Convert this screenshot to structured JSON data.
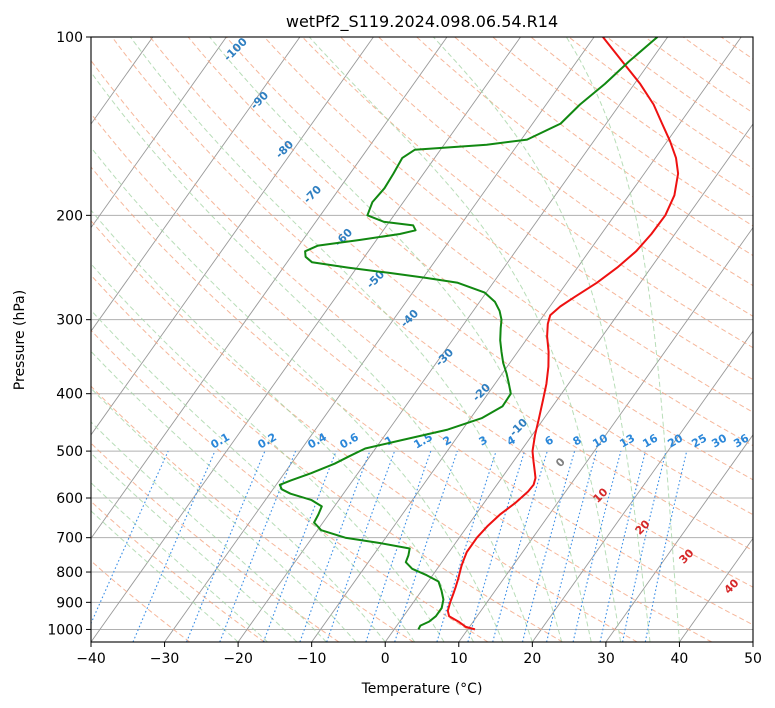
{
  "chart_data": {
    "type": "line",
    "subtype": "skew-T log-P diagram",
    "title": "wetPf2_S119.2024.098.06.54.R14",
    "xlabel": "Temperature (°C)",
    "ylabel": "Pressure (hPa)",
    "xlim": [
      -40,
      50
    ],
    "ylim": [
      1050,
      100
    ],
    "y_scale": "log",
    "x_ticks": [
      -40,
      -30,
      -20,
      -10,
      0,
      10,
      20,
      30,
      40,
      50
    ],
    "x_tick_labels": [
      "−40",
      "−30",
      "−20",
      "−10",
      "0",
      "10",
      "20",
      "30",
      "40",
      "50"
    ],
    "y_ticks": [
      1000,
      900,
      800,
      700,
      600,
      500,
      400,
      300,
      200,
      100
    ],
    "y_tick_labels": [
      "1000",
      "900",
      "800",
      "700",
      "600",
      "500",
      "400",
      "300",
      "200",
      "100"
    ],
    "grid": true,
    "colors": {
      "temperature": "#ee1111",
      "dewpoint": "#118811",
      "isotherm": "#999999",
      "dry_adiabat": "#f4a582",
      "moist_adiabat": "#a6d4a6",
      "mixing_ratio": "#3a8ee6",
      "label_blue": "#2f7fc1",
      "label_red": "#d62728",
      "label_gray": "#808080"
    },
    "series": [
      {
        "name": "Temperature",
        "points": [
          [
            1000,
            11.0
          ],
          [
            990,
            9.5
          ],
          [
            970,
            8.0
          ],
          [
            950,
            6.2
          ],
          [
            930,
            5.5
          ],
          [
            900,
            5.0
          ],
          [
            870,
            4.6
          ],
          [
            850,
            4.3
          ],
          [
            820,
            3.8
          ],
          [
            800,
            3.4
          ],
          [
            780,
            3.0
          ],
          [
            760,
            2.7
          ],
          [
            740,
            2.4
          ],
          [
            720,
            2.4
          ],
          [
            700,
            2.4
          ],
          [
            670,
            2.7
          ],
          [
            640,
            3.3
          ],
          [
            610,
            4.3
          ],
          [
            585,
            4.9
          ],
          [
            570,
            5.0
          ],
          [
            555,
            4.6
          ],
          [
            540,
            3.8
          ],
          [
            520,
            2.7
          ],
          [
            500,
            1.6
          ],
          [
            470,
            0.4
          ],
          [
            440,
            -0.7
          ],
          [
            410,
            -1.9
          ],
          [
            385,
            -3.0
          ],
          [
            360,
            -4.4
          ],
          [
            340,
            -5.8
          ],
          [
            320,
            -7.5
          ],
          [
            305,
            -8.6
          ],
          [
            295,
            -9.1
          ],
          [
            285,
            -8.6
          ],
          [
            275,
            -7.6
          ],
          [
            260,
            -5.9
          ],
          [
            245,
            -4.6
          ],
          [
            230,
            -3.6
          ],
          [
            215,
            -3.2
          ],
          [
            200,
            -3.1
          ],
          [
            185,
            -3.8
          ],
          [
            170,
            -5.4
          ],
          [
            160,
            -7.2
          ],
          [
            150,
            -9.6
          ],
          [
            140,
            -12.4
          ],
          [
            130,
            -15.4
          ],
          [
            120,
            -19.2
          ],
          [
            110,
            -23.8
          ],
          [
            100,
            -28.8
          ]
        ]
      },
      {
        "name": "Dewpoint",
        "points": [
          [
            1000,
            3.3
          ],
          [
            985,
            3.2
          ],
          [
            970,
            4.0
          ],
          [
            950,
            4.4
          ],
          [
            920,
            4.4
          ],
          [
            890,
            3.8
          ],
          [
            860,
            2.7
          ],
          [
            830,
            1.4
          ],
          [
            810,
            -0.8
          ],
          [
            790,
            -3.4
          ],
          [
            770,
            -4.9
          ],
          [
            750,
            -5.2
          ],
          [
            730,
            -5.7
          ],
          [
            715,
            -10.2
          ],
          [
            700,
            -15.5
          ],
          [
            680,
            -19.5
          ],
          [
            660,
            -21.2
          ],
          [
            640,
            -21.4
          ],
          [
            620,
            -21.7
          ],
          [
            605,
            -23.7
          ],
          [
            590,
            -27.2
          ],
          [
            580,
            -28.8
          ],
          [
            570,
            -29.5
          ],
          [
            560,
            -28.4
          ],
          [
            545,
            -26.4
          ],
          [
            525,
            -24.1
          ],
          [
            510,
            -22.8
          ],
          [
            495,
            -21.4
          ],
          [
            480,
            -17.5
          ],
          [
            460,
            -12.0
          ],
          [
            440,
            -8.5
          ],
          [
            420,
            -6.8
          ],
          [
            400,
            -6.9
          ],
          [
            385,
            -8.1
          ],
          [
            370,
            -9.4
          ],
          [
            355,
            -10.9
          ],
          [
            340,
            -12.2
          ],
          [
            325,
            -13.5
          ],
          [
            310,
            -14.6
          ],
          [
            300,
            -15.3
          ],
          [
            290,
            -16.4
          ],
          [
            280,
            -17.9
          ],
          [
            270,
            -20.2
          ],
          [
            260,
            -24.8
          ],
          [
            255,
            -29.6
          ],
          [
            250,
            -35.2
          ],
          [
            245,
            -41.2
          ],
          [
            240,
            -46.6
          ],
          [
            235,
            -48.0
          ],
          [
            230,
            -48.6
          ],
          [
            225,
            -47.4
          ],
          [
            220,
            -42.2
          ],
          [
            215,
            -37.4
          ],
          [
            212,
            -35.6
          ],
          [
            208,
            -36.4
          ],
          [
            205,
            -40.8
          ],
          [
            200,
            -43.6
          ],
          [
            190,
            -44.2
          ],
          [
            180,
            -43.9
          ],
          [
            170,
            -44.1
          ],
          [
            160,
            -44.4
          ],
          [
            155,
            -43.5
          ],
          [
            152,
            -34.2
          ],
          [
            149,
            -29.2
          ],
          [
            140,
            -26.2
          ],
          [
            130,
            -25.4
          ],
          [
            120,
            -24.0
          ],
          [
            110,
            -22.9
          ],
          [
            100,
            -21.4
          ]
        ]
      }
    ],
    "isotherm_labels": [
      "-100",
      "-90",
      "-80",
      "-70",
      "-60",
      "-50",
      "-40",
      "-30",
      "-20",
      "-10"
    ],
    "mixing_ratio_labels": [
      "0.1",
      "0.2",
      "0.4",
      "0.6",
      "1",
      "1.5",
      "2",
      "3",
      "4",
      "6",
      "8",
      "10",
      "13",
      "16",
      "20",
      "25",
      "30",
      "36"
    ],
    "moist_adiabat_labels": [
      "0",
      "10",
      "20",
      "30",
      "40"
    ]
  }
}
